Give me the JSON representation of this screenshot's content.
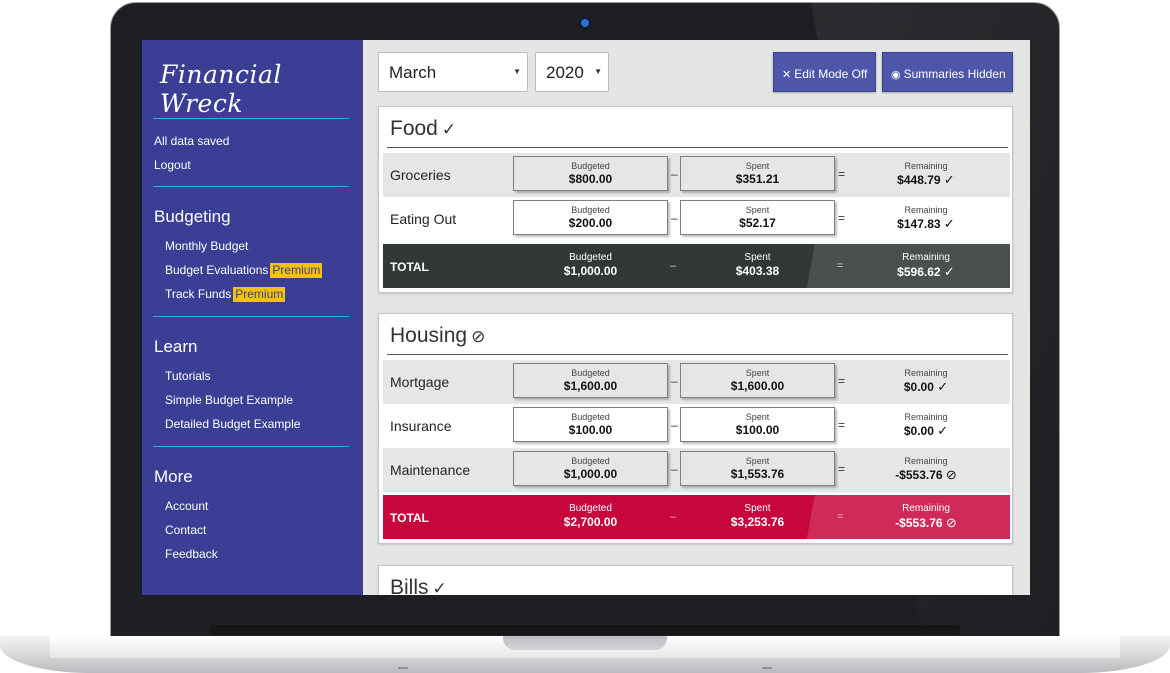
{
  "app": {
    "title": "Financial Wreck"
  },
  "sidebar": {
    "status": "All data saved",
    "logout": "Logout",
    "sections": [
      {
        "heading": "Budgeting",
        "items": [
          {
            "label": "Monthly Budget",
            "badge": ""
          },
          {
            "label": "Budget Evaluations",
            "badge": "Premium"
          },
          {
            "label": "Track Funds",
            "badge": "Premium"
          }
        ]
      },
      {
        "heading": "Learn",
        "items": [
          {
            "label": "Tutorials"
          },
          {
            "label": "Simple Budget Example"
          },
          {
            "label": "Detailed Budget Example"
          }
        ]
      },
      {
        "heading": "More",
        "items": [
          {
            "label": "Account"
          },
          {
            "label": "Contact"
          },
          {
            "label": "Feedback"
          }
        ]
      }
    ]
  },
  "toolbar": {
    "month": "March",
    "year": "2020",
    "edit_mode": "Edit Mode Off",
    "summaries": "Summaries Hidden"
  },
  "labels": {
    "budgeted": "Budgeted",
    "spent": "Spent",
    "remaining": "Remaining",
    "total": "TOTAL",
    "minus": "–",
    "equals": "="
  },
  "categories": [
    {
      "name": "Food",
      "status_icon": "check-icon",
      "rows": [
        {
          "label": "Groceries",
          "budgeted": "$800.00",
          "spent": "$351.21",
          "remaining": "$448.79"
        },
        {
          "label": "Eating Out",
          "budgeted": "$200.00",
          "spent": "$52.17",
          "remaining": "$147.83"
        }
      ],
      "total": {
        "budgeted": "$1,000.00",
        "spent": "$403.38",
        "remaining": "$596.62"
      }
    },
    {
      "name": "Housing",
      "status_icon": "over-budget-icon",
      "rows": [
        {
          "label": "Mortgage",
          "budgeted": "$1,600.00",
          "spent": "$1,600.00",
          "remaining": "$0.00"
        },
        {
          "label": "Insurance",
          "budgeted": "$100.00",
          "spent": "$100.00",
          "remaining": "$0.00"
        },
        {
          "label": "Maintenance",
          "budgeted": "$1,000.00",
          "spent": "$1,553.76",
          "remaining": "-$553.76"
        }
      ],
      "total": {
        "budgeted": "$2,700.00",
        "spent": "$3,253.76",
        "remaining": "-$553.76"
      }
    },
    {
      "name": "Bills",
      "status_icon": "check-icon"
    }
  ],
  "colors": {
    "sidebar": "#3a3f95",
    "accent_line": "#2db0d4",
    "premium": "#f4c20d",
    "button": "#4d56a8",
    "total_ok": "#3a3f3c",
    "total_over": "#c8063e"
  }
}
